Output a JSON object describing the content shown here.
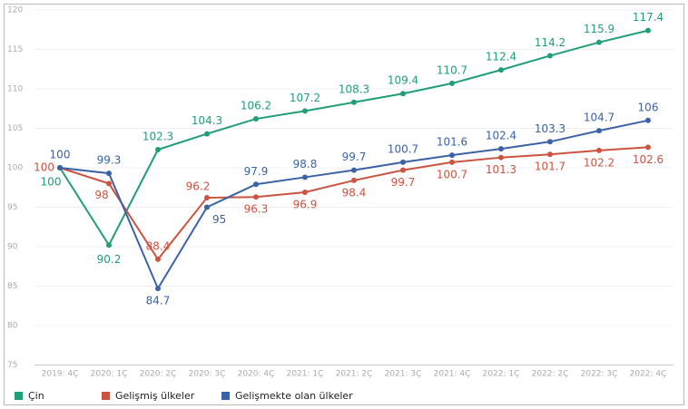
{
  "chart_data": {
    "type": "line",
    "categories": [
      "2019: 4Ç",
      "2020: 1Ç",
      "2020: 2Ç",
      "2020: 3Ç",
      "2020: 4Ç",
      "2021: 1Ç",
      "2021: 2Ç",
      "2021: 3Ç",
      "2021: 4Ç",
      "2022: 1Ç",
      "2022: 2Ç",
      "2022: 3Ç",
      "2022: 4Ç"
    ],
    "series": [
      {
        "name": "Çin",
        "color": "#1f9e77",
        "values": [
          100,
          90.2,
          102.3,
          104.3,
          106.2,
          107.2,
          108.3,
          109.4,
          110.7,
          112.4,
          114.2,
          115.9,
          117.4
        ]
      },
      {
        "name": "Gelişmiş ülkeler",
        "color": "#cc5340",
        "values": [
          100,
          98,
          88.4,
          96.2,
          96.3,
          96.9,
          98.4,
          99.7,
          100.7,
          101.3,
          101.7,
          102.2,
          102.6
        ]
      },
      {
        "name": "Gelişmekte olan ülkeler",
        "color": "#3b62a6",
        "values": [
          100,
          99.3,
          84.7,
          95,
          97.9,
          98.8,
          99.7,
          100.7,
          101.6,
          102.4,
          103.3,
          104.7,
          106
        ]
      }
    ],
    "ylim": [
      75,
      120
    ],
    "yticks": [
      75,
      80,
      85,
      90,
      95,
      100,
      105,
      110,
      115,
      120
    ],
    "grid": true,
    "legend": "bottom"
  }
}
